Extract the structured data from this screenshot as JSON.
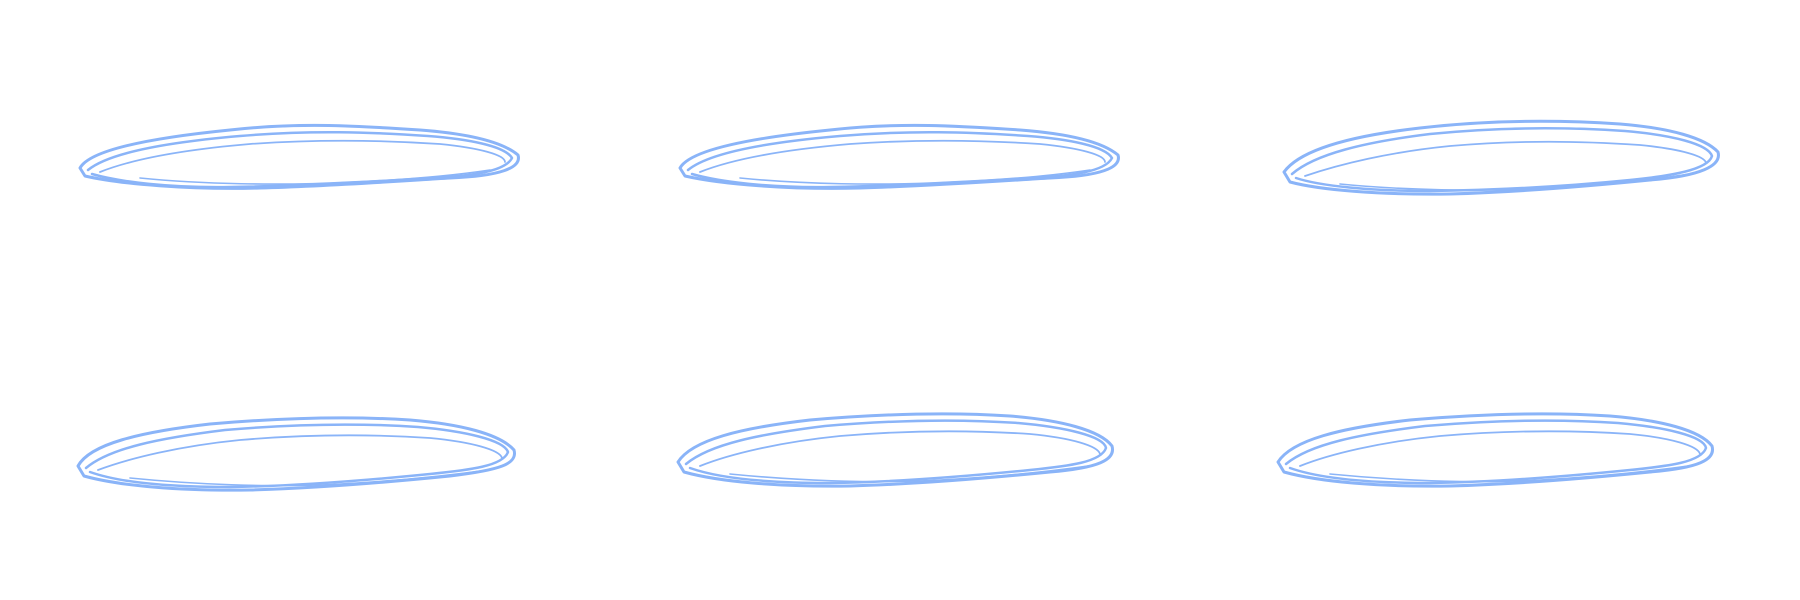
{
  "canvas": {
    "background_color": "#ffffff"
  },
  "stroke_color": "#8ab4f8",
  "scribbles": [
    {
      "id": "ellipse-1",
      "shape": "hand-drawn-ellipse"
    },
    {
      "id": "ellipse-2",
      "shape": "hand-drawn-ellipse"
    },
    {
      "id": "ellipse-3",
      "shape": "hand-drawn-ellipse"
    },
    {
      "id": "ellipse-4",
      "shape": "hand-drawn-ellipse"
    },
    {
      "id": "ellipse-5",
      "shape": "hand-drawn-ellipse"
    },
    {
      "id": "ellipse-6",
      "shape": "hand-drawn-ellipse"
    }
  ]
}
